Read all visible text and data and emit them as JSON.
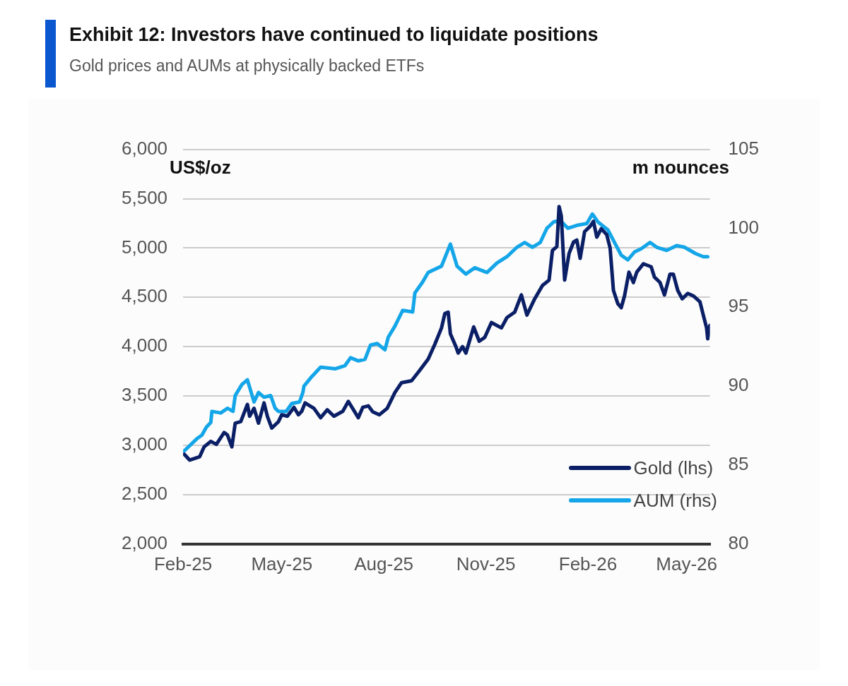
{
  "chart_data": {
    "type": "line",
    "title": "Exhibit 12: Investors have continued to liquidate positions",
    "subtitle": "Gold prices and AUMs at physically backed ETFs",
    "ylabel": "US$/oz",
    "y2label": "m nounces",
    "xlim": [
      "2025-02-01",
      "2026-05-22"
    ],
    "xticks": [
      {
        "value": "2025-02-01",
        "label": "Feb-25"
      },
      {
        "value": "2025-05-01",
        "label": "May-25"
      },
      {
        "value": "2025-08-01",
        "label": "Aug-25"
      },
      {
        "value": "2025-11-01",
        "label": "Nov-25"
      },
      {
        "value": "2026-02-01",
        "label": "Feb-26"
      },
      {
        "value": "2026-05-01",
        "label": "May-26"
      }
    ],
    "ylim": [
      2000,
      6000
    ],
    "yticks": [
      {
        "value": 2000,
        "label": "2,000"
      },
      {
        "value": 2500,
        "label": "2,500"
      },
      {
        "value": 3000,
        "label": "3,000"
      },
      {
        "value": 3500,
        "label": "3,500"
      },
      {
        "value": 4000,
        "label": "4,000"
      },
      {
        "value": 4500,
        "label": "4,500"
      },
      {
        "value": 5000,
        "label": "5,000"
      },
      {
        "value": 5500,
        "label": "5,500"
      },
      {
        "value": 6000,
        "label": "6,000"
      }
    ],
    "y2lim": [
      80,
      105
    ],
    "y2ticks": [
      80,
      85,
      90,
      95,
      100,
      105
    ],
    "grid": "y",
    "legend": "bottom right",
    "marker": "none",
    "line_style": "solid",
    "series": [
      {
        "name": "Gold (lhs)",
        "color": "#0b1f66",
        "x": [
          "2025-02-02",
          "2025-02-07",
          "2025-02-16",
          "2025-02-20",
          "2025-02-26",
          "2025-03-03",
          "2025-03-10",
          "2025-03-13",
          "2025-03-17",
          "2025-03-20",
          "2025-03-25",
          "2025-03-31",
          "2025-04-02",
          "2025-04-06",
          "2025-04-10",
          "2025-04-15",
          "2025-04-18",
          "2025-04-22",
          "2025-04-28",
          "2025-05-01",
          "2025-05-06",
          "2025-05-12",
          "2025-05-16",
          "2025-05-19",
          "2025-05-22",
          "2025-05-30",
          "2025-06-05",
          "2025-06-11",
          "2025-06-17",
          "2025-06-25",
          "2025-06-30",
          "2025-07-09",
          "2025-07-13",
          "2025-07-18",
          "2025-07-22",
          "2025-07-28",
          "2025-08-04",
          "2025-08-11",
          "2025-08-17",
          "2025-08-26",
          "2025-09-02",
          "2025-09-10",
          "2025-09-16",
          "2025-09-22",
          "2025-09-25",
          "2025-09-28",
          "2025-09-30",
          "2025-10-05",
          "2025-10-07",
          "2025-10-11",
          "2025-10-14",
          "2025-10-21",
          "2025-10-26",
          "2025-10-31",
          "2025-11-06",
          "2025-11-15",
          "2025-11-20",
          "2025-11-27",
          "2025-12-03",
          "2025-12-08",
          "2025-12-15",
          "2025-12-22",
          "2025-12-28",
          "2025-12-31",
          "2026-01-04",
          "2026-01-06",
          "2026-01-08",
          "2026-01-11",
          "2026-01-15",
          "2026-01-19",
          "2026-01-22",
          "2026-01-25",
          "2026-01-29",
          "2026-02-03",
          "2026-02-06",
          "2026-02-09",
          "2026-02-13",
          "2026-02-18",
          "2026-02-21",
          "2026-02-24",
          "2026-02-28",
          "2026-03-03",
          "2026-03-06",
          "2026-03-10",
          "2026-03-14",
          "2026-03-17",
          "2026-03-23",
          "2026-03-30",
          "2026-04-02",
          "2026-04-07",
          "2026-04-11",
          "2026-04-16",
          "2026-04-19",
          "2026-04-23",
          "2026-04-27",
          "2026-05-02",
          "2026-05-07",
          "2026-05-13",
          "2026-05-16",
          "2026-05-19",
          "2026-05-20",
          "2026-05-22"
        ],
        "values": [
          2910,
          2850,
          2885,
          2985,
          3040,
          3010,
          3130,
          3105,
          2985,
          3225,
          3240,
          3415,
          3295,
          3375,
          3225,
          3430,
          3295,
          3175,
          3240,
          3310,
          3295,
          3385,
          3310,
          3345,
          3430,
          3375,
          3280,
          3360,
          3295,
          3345,
          3445,
          3280,
          3385,
          3400,
          3340,
          3310,
          3375,
          3535,
          3635,
          3655,
          3755,
          3875,
          4025,
          4190,
          4335,
          4350,
          4130,
          4000,
          3935,
          4000,
          3935,
          4200,
          4055,
          4095,
          4245,
          4190,
          4295,
          4350,
          4525,
          4320,
          4485,
          4620,
          4675,
          4975,
          5015,
          5420,
          5325,
          4675,
          4945,
          5060,
          5080,
          4895,
          5165,
          5220,
          5270,
          5110,
          5195,
          5135,
          5000,
          4570,
          4435,
          4395,
          4515,
          4755,
          4650,
          4755,
          4840,
          4810,
          4705,
          4650,
          4525,
          4735,
          4735,
          4570,
          4485,
          4540,
          4515,
          4455,
          4320,
          4190,
          4080,
          4215
        ]
      },
      {
        "name": "AUM (rhs)",
        "color": "#14a6e8",
        "axis": "y2",
        "x": [
          "2025-02-02",
          "2025-02-14",
          "2025-02-18",
          "2025-02-22",
          "2025-02-26",
          "2025-02-27",
          "2025-03-07",
          "2025-03-13",
          "2025-03-18",
          "2025-03-20",
          "2025-03-26",
          "2025-03-31",
          "2025-04-06",
          "2025-04-10",
          "2025-04-15",
          "2025-04-21",
          "2025-04-25",
          "2025-04-28",
          "2025-05-05",
          "2025-05-10",
          "2025-05-17",
          "2025-05-20",
          "2025-05-21",
          "2025-05-28",
          "2025-06-05",
          "2025-06-18",
          "2025-06-27",
          "2025-07-02",
          "2025-07-09",
          "2025-07-15",
          "2025-07-20",
          "2025-07-26",
          "2025-08-02",
          "2025-08-05",
          "2025-08-11",
          "2025-08-18",
          "2025-08-27",
          "2025-08-29",
          "2025-09-05",
          "2025-09-10",
          "2025-09-22",
          "2025-09-30",
          "2025-10-06",
          "2025-10-14",
          "2025-10-22",
          "2025-11-02",
          "2025-11-11",
          "2025-11-20",
          "2025-11-29",
          "2025-12-06",
          "2025-12-13",
          "2025-12-20",
          "2025-12-26",
          "2026-01-01",
          "2026-01-07",
          "2026-01-14",
          "2026-01-23",
          "2026-01-31",
          "2026-02-05",
          "2026-02-10",
          "2026-02-19",
          "2026-02-25",
          "2026-03-03",
          "2026-03-09",
          "2026-03-15",
          "2026-03-21",
          "2026-03-29",
          "2026-04-04",
          "2026-04-13",
          "2026-04-22",
          "2026-04-29",
          "2026-05-09",
          "2026-05-16",
          "2026-05-20"
        ],
        "values": [
          85.9,
          86.7,
          86.9,
          87.4,
          87.7,
          88.4,
          88.3,
          88.6,
          88.4,
          89.4,
          90.1,
          90.4,
          89.0,
          89.6,
          89.3,
          89.4,
          88.6,
          88.4,
          88.4,
          88.9,
          89.0,
          89.6,
          90.0,
          90.6,
          91.2,
          91.1,
          91.3,
          91.8,
          91.6,
          91.7,
          92.6,
          92.7,
          92.3,
          93.1,
          93.8,
          94.8,
          94.7,
          95.9,
          96.6,
          97.2,
          97.6,
          99.0,
          97.6,
          97.1,
          97.5,
          97.2,
          97.8,
          98.2,
          98.8,
          99.1,
          98.8,
          99.1,
          100.0,
          100.4,
          100.5,
          100.0,
          100.2,
          100.3,
          100.9,
          100.4,
          99.9,
          99.1,
          98.3,
          98.0,
          98.5,
          98.7,
          99.1,
          98.8,
          98.6,
          98.9,
          98.8,
          98.4,
          98.2,
          98.2
        ]
      }
    ]
  }
}
